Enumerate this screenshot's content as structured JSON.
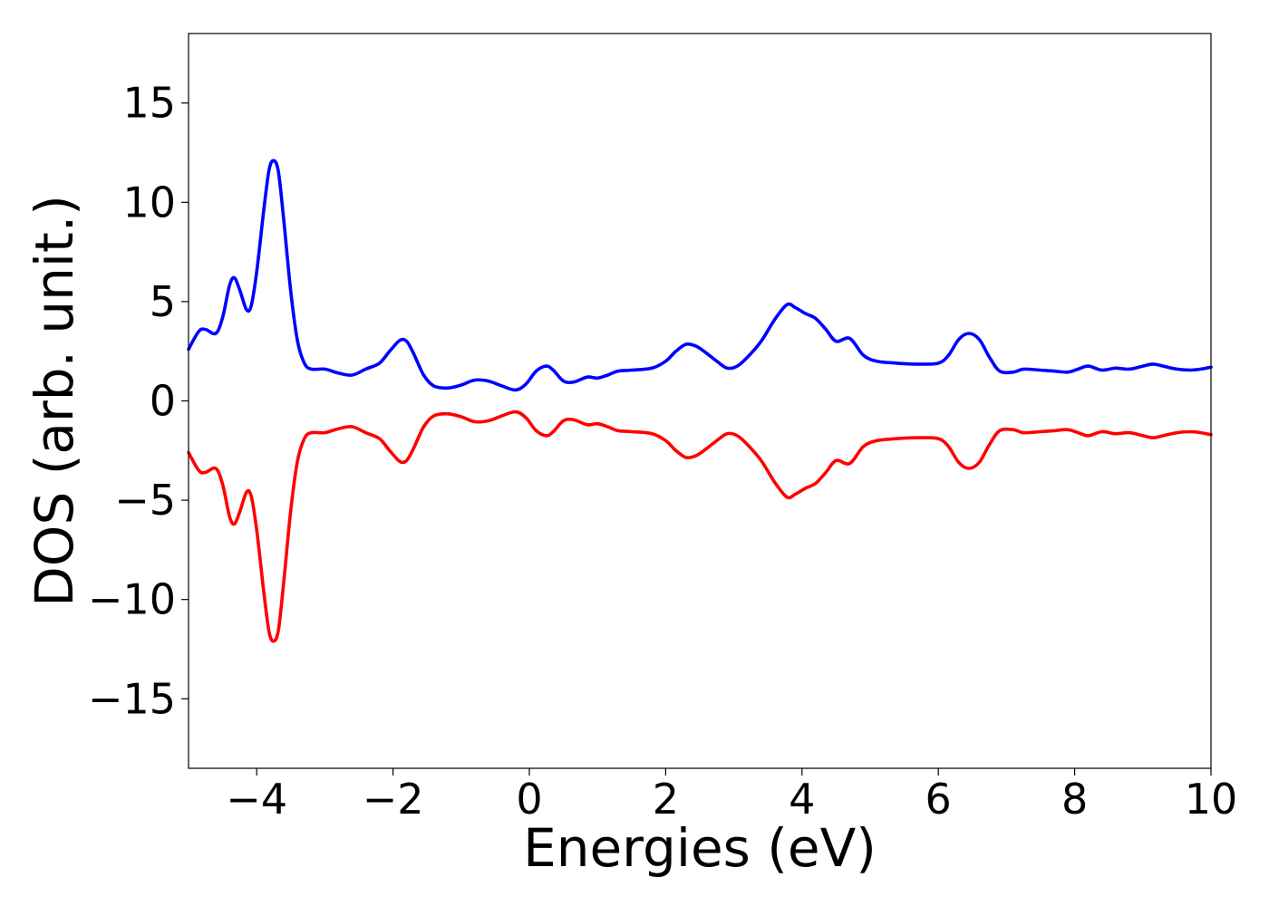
{
  "chart_data": {
    "type": "line",
    "title": "",
    "xlabel": "Energies (eV)",
    "ylabel": "DOS (arb. unit.)",
    "xlim": [
      -5,
      10
    ],
    "ylim": [
      -18.5,
      18.5
    ],
    "xticks": [
      -4,
      -2,
      0,
      2,
      4,
      6,
      8,
      10
    ],
    "xtick_labels": [
      "−4",
      "−2",
      "0",
      "2",
      "4",
      "6",
      "8",
      "10"
    ],
    "yticks": [
      15,
      10,
      5,
      0,
      -5,
      -10,
      -15
    ],
    "ytick_labels": [
      "15",
      "10",
      "5",
      "0",
      "−5",
      "−10",
      "−15"
    ],
    "grid": false,
    "legend": "none",
    "series": [
      {
        "color": "#0000ff",
        "points": [
          [
            -5.0,
            2.6
          ],
          [
            -4.85,
            3.5
          ],
          [
            -4.75,
            3.6
          ],
          [
            -4.6,
            3.4
          ],
          [
            -4.5,
            4.2
          ],
          [
            -4.4,
            5.8
          ],
          [
            -4.33,
            6.2
          ],
          [
            -4.25,
            5.6
          ],
          [
            -4.15,
            4.6
          ],
          [
            -4.08,
            4.8
          ],
          [
            -4.0,
            6.5
          ],
          [
            -3.9,
            9.5
          ],
          [
            -3.82,
            11.6
          ],
          [
            -3.75,
            12.1
          ],
          [
            -3.68,
            11.5
          ],
          [
            -3.6,
            9.0
          ],
          [
            -3.5,
            5.5
          ],
          [
            -3.4,
            3.0
          ],
          [
            -3.3,
            1.9
          ],
          [
            -3.2,
            1.6
          ],
          [
            -3.0,
            1.6
          ],
          [
            -2.8,
            1.4
          ],
          [
            -2.6,
            1.3
          ],
          [
            -2.4,
            1.6
          ],
          [
            -2.2,
            1.9
          ],
          [
            -2.05,
            2.5
          ],
          [
            -1.9,
            3.05
          ],
          [
            -1.8,
            3.0
          ],
          [
            -1.7,
            2.4
          ],
          [
            -1.55,
            1.3
          ],
          [
            -1.4,
            0.75
          ],
          [
            -1.2,
            0.65
          ],
          [
            -1.0,
            0.8
          ],
          [
            -0.8,
            1.05
          ],
          [
            -0.6,
            1.0
          ],
          [
            -0.4,
            0.75
          ],
          [
            -0.2,
            0.55
          ],
          [
            -0.05,
            0.85
          ],
          [
            0.1,
            1.5
          ],
          [
            0.25,
            1.75
          ],
          [
            0.35,
            1.55
          ],
          [
            0.5,
            1.0
          ],
          [
            0.65,
            0.95
          ],
          [
            0.85,
            1.2
          ],
          [
            1.0,
            1.15
          ],
          [
            1.15,
            1.3
          ],
          [
            1.3,
            1.5
          ],
          [
            1.5,
            1.55
          ],
          [
            1.8,
            1.65
          ],
          [
            2.0,
            2.0
          ],
          [
            2.15,
            2.5
          ],
          [
            2.3,
            2.85
          ],
          [
            2.45,
            2.75
          ],
          [
            2.6,
            2.4
          ],
          [
            2.75,
            2.0
          ],
          [
            2.9,
            1.65
          ],
          [
            3.05,
            1.75
          ],
          [
            3.2,
            2.2
          ],
          [
            3.4,
            3.0
          ],
          [
            3.6,
            4.1
          ],
          [
            3.78,
            4.85
          ],
          [
            3.9,
            4.7
          ],
          [
            4.05,
            4.4
          ],
          [
            4.2,
            4.15
          ],
          [
            4.35,
            3.6
          ],
          [
            4.5,
            3.0
          ],
          [
            4.7,
            3.15
          ],
          [
            4.9,
            2.3
          ],
          [
            5.1,
            2.0
          ],
          [
            5.4,
            1.9
          ],
          [
            5.7,
            1.85
          ],
          [
            6.0,
            1.9
          ],
          [
            6.15,
            2.3
          ],
          [
            6.3,
            3.1
          ],
          [
            6.45,
            3.4
          ],
          [
            6.6,
            3.1
          ],
          [
            6.75,
            2.2
          ],
          [
            6.9,
            1.5
          ],
          [
            7.1,
            1.45
          ],
          [
            7.25,
            1.6
          ],
          [
            7.5,
            1.55
          ],
          [
            7.7,
            1.5
          ],
          [
            7.9,
            1.45
          ],
          [
            8.05,
            1.6
          ],
          [
            8.2,
            1.75
          ],
          [
            8.4,
            1.55
          ],
          [
            8.6,
            1.65
          ],
          [
            8.8,
            1.6
          ],
          [
            9.0,
            1.75
          ],
          [
            9.15,
            1.85
          ],
          [
            9.3,
            1.75
          ],
          [
            9.5,
            1.6
          ],
          [
            9.7,
            1.55
          ],
          [
            9.85,
            1.6
          ],
          [
            10.0,
            1.7
          ]
        ]
      },
      {
        "color": "#ff0000",
        "points": [
          [
            -5.0,
            -2.6
          ],
          [
            -4.85,
            -3.5
          ],
          [
            -4.75,
            -3.6
          ],
          [
            -4.6,
            -3.4
          ],
          [
            -4.5,
            -4.2
          ],
          [
            -4.4,
            -5.8
          ],
          [
            -4.33,
            -6.2
          ],
          [
            -4.25,
            -5.6
          ],
          [
            -4.15,
            -4.6
          ],
          [
            -4.08,
            -4.8
          ],
          [
            -4.0,
            -6.5
          ],
          [
            -3.9,
            -9.5
          ],
          [
            -3.82,
            -11.6
          ],
          [
            -3.75,
            -12.1
          ],
          [
            -3.68,
            -11.5
          ],
          [
            -3.6,
            -9.0
          ],
          [
            -3.5,
            -5.5
          ],
          [
            -3.4,
            -3.0
          ],
          [
            -3.3,
            -1.9
          ],
          [
            -3.2,
            -1.6
          ],
          [
            -3.0,
            -1.6
          ],
          [
            -2.8,
            -1.4
          ],
          [
            -2.6,
            -1.3
          ],
          [
            -2.4,
            -1.6
          ],
          [
            -2.2,
            -1.9
          ],
          [
            -2.05,
            -2.5
          ],
          [
            -1.9,
            -3.05
          ],
          [
            -1.8,
            -3.0
          ],
          [
            -1.7,
            -2.4
          ],
          [
            -1.55,
            -1.3
          ],
          [
            -1.4,
            -0.75
          ],
          [
            -1.2,
            -0.65
          ],
          [
            -1.0,
            -0.8
          ],
          [
            -0.8,
            -1.05
          ],
          [
            -0.6,
            -1.0
          ],
          [
            -0.4,
            -0.75
          ],
          [
            -0.2,
            -0.55
          ],
          [
            -0.05,
            -0.85
          ],
          [
            0.1,
            -1.5
          ],
          [
            0.25,
            -1.75
          ],
          [
            0.35,
            -1.55
          ],
          [
            0.5,
            -1.0
          ],
          [
            0.65,
            -0.95
          ],
          [
            0.85,
            -1.2
          ],
          [
            1.0,
            -1.15
          ],
          [
            1.15,
            -1.3
          ],
          [
            1.3,
            -1.5
          ],
          [
            1.5,
            -1.55
          ],
          [
            1.8,
            -1.65
          ],
          [
            2.0,
            -2.0
          ],
          [
            2.15,
            -2.5
          ],
          [
            2.3,
            -2.85
          ],
          [
            2.45,
            -2.75
          ],
          [
            2.6,
            -2.4
          ],
          [
            2.75,
            -2.0
          ],
          [
            2.9,
            -1.65
          ],
          [
            3.05,
            -1.75
          ],
          [
            3.2,
            -2.2
          ],
          [
            3.4,
            -3.0
          ],
          [
            3.6,
            -4.1
          ],
          [
            3.78,
            -4.85
          ],
          [
            3.9,
            -4.7
          ],
          [
            4.05,
            -4.4
          ],
          [
            4.2,
            -4.15
          ],
          [
            4.35,
            -3.6
          ],
          [
            4.5,
            -3.0
          ],
          [
            4.7,
            -3.15
          ],
          [
            4.9,
            -2.3
          ],
          [
            5.1,
            -2.0
          ],
          [
            5.4,
            -1.9
          ],
          [
            5.7,
            -1.85
          ],
          [
            6.0,
            -1.9
          ],
          [
            6.15,
            -2.3
          ],
          [
            6.3,
            -3.1
          ],
          [
            6.45,
            -3.4
          ],
          [
            6.6,
            -3.1
          ],
          [
            6.75,
            -2.2
          ],
          [
            6.9,
            -1.5
          ],
          [
            7.1,
            -1.45
          ],
          [
            7.25,
            -1.6
          ],
          [
            7.5,
            -1.55
          ],
          [
            7.7,
            -1.5
          ],
          [
            7.9,
            -1.45
          ],
          [
            8.05,
            -1.6
          ],
          [
            8.2,
            -1.75
          ],
          [
            8.4,
            -1.55
          ],
          [
            8.6,
            -1.65
          ],
          [
            8.8,
            -1.6
          ],
          [
            9.0,
            -1.75
          ],
          [
            9.15,
            -1.85
          ],
          [
            9.3,
            -1.75
          ],
          [
            9.5,
            -1.6
          ],
          [
            9.7,
            -1.55
          ],
          [
            9.85,
            -1.6
          ],
          [
            10.0,
            -1.7
          ]
        ]
      }
    ]
  }
}
